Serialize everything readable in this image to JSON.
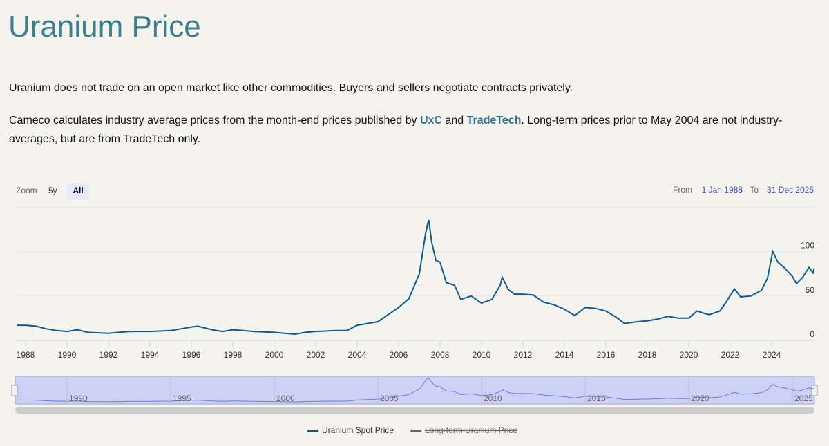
{
  "header": {
    "title": "Uranium Price"
  },
  "paragraphs": {
    "p1": "Uranium does not trade on an open market like other commodities. Buyers and sellers negotiate contracts privately.",
    "p2_before": "Cameco calculates industry average prices from the month-end prices published by ",
    "p2_link1": "UxC",
    "p2_middle": " and ",
    "p2_link2": "TradeTech",
    "p2_after": ". Long-term prices prior to May 2004 are not industry-averages, but are from TradeTech only."
  },
  "controls": {
    "zoom_label": "Zoom",
    "buttons": [
      "5y",
      "All"
    ],
    "from_label": "From",
    "from_date": "1 Jan 1988",
    "to_label": "To",
    "to_date": "31 Dec 2025"
  },
  "chart_data": {
    "type": "line",
    "x": [
      1987.6,
      1988,
      1988.5,
      1989,
      1989.5,
      1990,
      1990.5,
      1991,
      1992,
      1992.5,
      1993,
      1994,
      1995,
      1995.5,
      1996,
      1996.3,
      1997,
      1997.5,
      1998,
      1998.5,
      1999,
      2000,
      2000.5,
      2001,
      2001.5,
      2002,
      2003,
      2003.5,
      2004,
      2004.5,
      2005,
      2005.5,
      2006,
      2006.5,
      2007,
      2007.3,
      2007.45,
      2007.6,
      2007.8,
      2008,
      2008.3,
      2008.7,
      2009,
      2009.5,
      2010,
      2010.5,
      2010.9,
      2011,
      2011.3,
      2011.6,
      2012,
      2012.5,
      2013,
      2013.5,
      2014,
      2014.5,
      2015,
      2015.5,
      2016,
      2016.5,
      2016.9,
      2017.5,
      2018,
      2018.5,
      2019,
      2019.5,
      2020,
      2020.4,
      2020.8,
      2021,
      2021.5,
      2021.8,
      2022.2,
      2022.5,
      2023,
      2023.5,
      2023.8,
      2024.05,
      2024.3,
      2024.6,
      2025,
      2025.2,
      2025.5,
      2025.8,
      2026,
      2026.05
    ],
    "series": [
      {
        "name": "Uranium Spot Price",
        "color": "#0e5a8f",
        "values": [
          17,
          17,
          16,
          13,
          11,
          10,
          12,
          9,
          8,
          9,
          10,
          10,
          11,
          13,
          15,
          16,
          12,
          10,
          12,
          11,
          10,
          9,
          8,
          7,
          9,
          10,
          11,
          11,
          17,
          19,
          21,
          29,
          37,
          47,
          75,
          120,
          136,
          110,
          90,
          88,
          65,
          62,
          46,
          50,
          42,
          46,
          62,
          71,
          57,
          52,
          52,
          51,
          43,
          40,
          35,
          28,
          37,
          36,
          33,
          26,
          19,
          21,
          22,
          24,
          27,
          25,
          25,
          33,
          30,
          29,
          33,
          43,
          58,
          49,
          50,
          56,
          70,
          100,
          88,
          82,
          72,
          64,
          71,
          82,
          76,
          81
        ]
      }
    ],
    "legend_hidden": {
      "name": "Long-term Uranium Price",
      "color": "#666666"
    },
    "xlim": [
      1987.5,
      2026.1
    ],
    "xticks": [
      1988,
      1990,
      1992,
      1994,
      1996,
      1998,
      2000,
      2002,
      2004,
      2006,
      2008,
      2010,
      2012,
      2014,
      2016,
      2018,
      2020,
      2022,
      2024
    ],
    "ylim": [
      0,
      150
    ],
    "yticks": [
      0,
      50,
      100
    ],
    "grid": true,
    "navigator_xticks": [
      1990,
      1995,
      2000,
      2005,
      2010,
      2015,
      2020,
      2025
    ]
  }
}
